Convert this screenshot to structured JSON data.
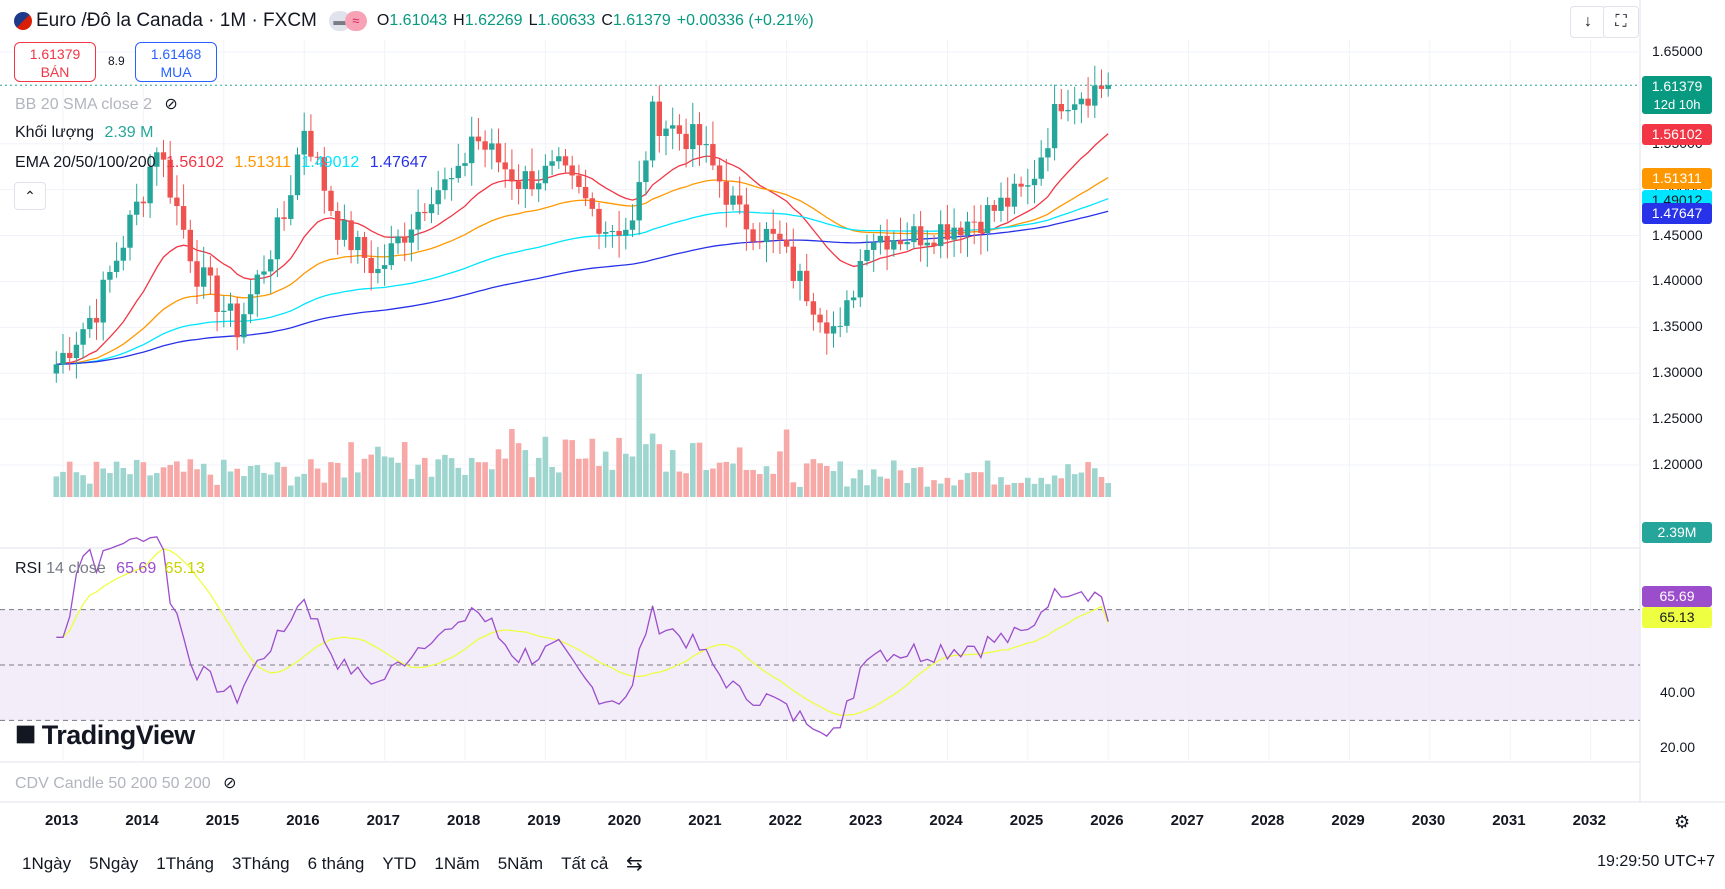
{
  "header": {
    "title": "Euro /Đô la Canada · 1M · FXCM",
    "toggle_icon": "≈",
    "ohlc": [
      {
        "k": "O",
        "v": "1.61043"
      },
      {
        "k": "H",
        "v": "1.62269"
      },
      {
        "k": "L",
        "v": "1.60633"
      },
      {
        "k": "C",
        "v": "1.61379"
      },
      {
        "k": "",
        "v": "+0.00336 (+0.21%)"
      }
    ]
  },
  "trade": {
    "sell_price": "1.61379",
    "sell_label": "BÁN",
    "spread": "8.9",
    "buy_price": "1.61468",
    "buy_label": "MUA"
  },
  "indicators": {
    "bb": "BB 20 SMA close 2",
    "volume_label": "Khối lượng",
    "volume_value": "2.39 M",
    "ema_label": "EMA 20/50/100/200",
    "ema_values": [
      "1.56102",
      "1.51311",
      "1.49012",
      "1.47647"
    ],
    "rsi_label": "RSI",
    "rsi_params": "14 close",
    "rsi_value": "65.69",
    "rsi_ma_value": "65.13",
    "cdv": "CDV Candle 50 200 50 200"
  },
  "price_axis": [
    "1.65000",
    "1.55000",
    "1.50000",
    "1.45000",
    "1.40000",
    "1.35000",
    "1.30000",
    "1.25000",
    "1.20000"
  ],
  "rsi_axis": [
    "40.00",
    "20.00"
  ],
  "price_tags": [
    {
      "text": "1.61379",
      "sub": "12d 10h",
      "color": "#089981"
    },
    {
      "text": "1.56102",
      "color": "#f23645"
    },
    {
      "text": "1.51311",
      "color": "#ff9800"
    },
    {
      "text": "1.49012",
      "color": "#00e5ff"
    },
    {
      "text": "1.47647",
      "color": "#2832e8"
    },
    {
      "text": "2.39M",
      "color": "#26a69a"
    },
    {
      "text": "65.69",
      "color": "#9c4dcc"
    },
    {
      "text": "65.13",
      "color": "#eeff41"
    }
  ],
  "time_axis": [
    "2013",
    "2014",
    "2015",
    "2016",
    "2017",
    "2018",
    "2019",
    "2020",
    "2021",
    "2022",
    "2023",
    "2024",
    "2025",
    "2026",
    "2027",
    "2028",
    "2029",
    "2030",
    "2031",
    "2032"
  ],
  "brand": "TradingView",
  "ranges": [
    "1Ngày",
    "5Ngày",
    "1Tháng",
    "3Tháng",
    "6 tháng",
    "YTD",
    "1Năm",
    "5Năm",
    "Tất cả"
  ],
  "clock": "19:29:50 UTC+7",
  "colors": {
    "up": "#26a69a",
    "down": "#ef5350",
    "ema20": "#f23645",
    "ema50": "#ff9800",
    "ema100": "#00e5ff",
    "ema200": "#2832e8",
    "rsi": "#9c4dcc",
    "rsi_ma": "#eeff41"
  },
  "chart_data": {
    "type": "candlestick",
    "interval": "1M",
    "ylim": [
      1.2,
      1.65
    ],
    "rsi_ylim": [
      20,
      80
    ],
    "rsi_bands": [
      30,
      50,
      70
    ],
    "anchors": [
      [
        "2012-12",
        1.31
      ],
      [
        "2013-06",
        1.37
      ],
      [
        "2014-01",
        1.5
      ],
      [
        "2014-03",
        1.55
      ],
      [
        "2014-09",
        1.41
      ],
      [
        "2015-03",
        1.35
      ],
      [
        "2015-10",
        1.47
      ],
      [
        "2016-01",
        1.57
      ],
      [
        "2016-06",
        1.46
      ],
      [
        "2016-12",
        1.41
      ],
      [
        "2017-08",
        1.5
      ],
      [
        "2017-12",
        1.51
      ],
      [
        "2018-02",
        1.56
      ],
      [
        "2018-09",
        1.51
      ],
      [
        "2019-03",
        1.52
      ],
      [
        "2019-10",
        1.46
      ],
      [
        "2020-02",
        1.46
      ],
      [
        "2020-05",
        1.58
      ],
      [
        "2020-12",
        1.55
      ],
      [
        "2021-06",
        1.47
      ],
      [
        "2021-12",
        1.44
      ],
      [
        "2022-02",
        1.41
      ],
      [
        "2022-09",
        1.34
      ],
      [
        "2023-01",
        1.45
      ],
      [
        "2023-08",
        1.45
      ],
      [
        "2024-06",
        1.47
      ],
      [
        "2025-01",
        1.5
      ],
      [
        "2025-06",
        1.6
      ],
      [
        "2025-11",
        1.61
      ],
      [
        "2026-01",
        1.61379
      ]
    ],
    "ema_last": {
      "ema20": 1.56102,
      "ema50": 1.51311,
      "ema100": 1.49012,
      "ema200": 1.47647
    },
    "last_volume": "2.39M",
    "last_rsi": 65.69,
    "last_rsi_ma": 65.13
  }
}
